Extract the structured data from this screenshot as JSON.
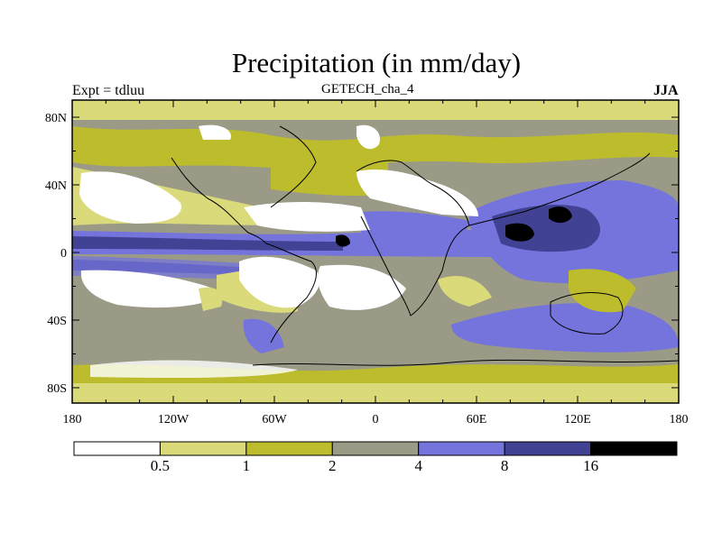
{
  "title": "Precipitation (in mm/day)",
  "left_label": "Expt = tdluu",
  "center_label": "GETECH_cha_4",
  "right_label": "JJA",
  "map": {
    "lon_ticks": [
      "180",
      "120W",
      "60W",
      "0",
      "60E",
      "120E",
      "180"
    ],
    "lat_ticks": [
      "80N",
      "40N",
      "0",
      "40S",
      "80S"
    ]
  },
  "colorbar": {
    "colors": [
      "#ffffff",
      "#dada7a",
      "#bcbc2c",
      "#9a9a86",
      "#7474dc",
      "#424294",
      "#000000"
    ],
    "labels": [
      "0.5",
      "1",
      "2",
      "4",
      "8",
      "16"
    ]
  }
}
